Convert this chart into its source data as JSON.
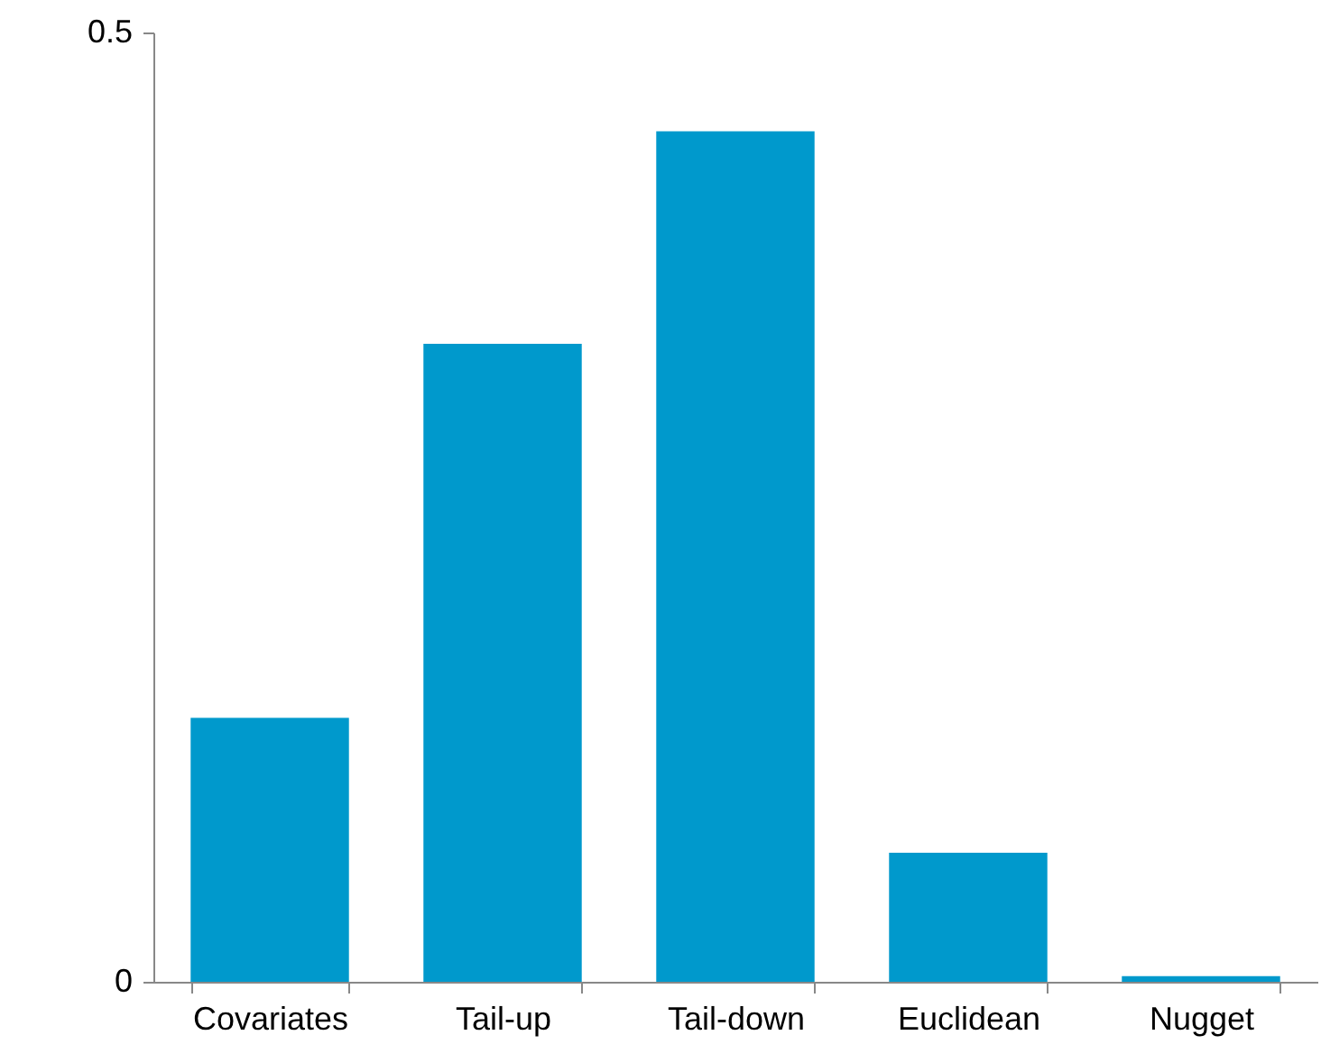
{
  "chart_data": {
    "type": "bar",
    "categories": [
      "Covariates",
      "Tail-up",
      "Tail-down",
      "Euclidean",
      "Nugget"
    ],
    "values": [
      0.139,
      0.336,
      0.448,
      0.068,
      0.003
    ],
    "color": "#0099cc",
    "ylim": [
      0,
      0.5
    ],
    "yticks": [
      0,
      0.5
    ],
    "grid": false
  }
}
